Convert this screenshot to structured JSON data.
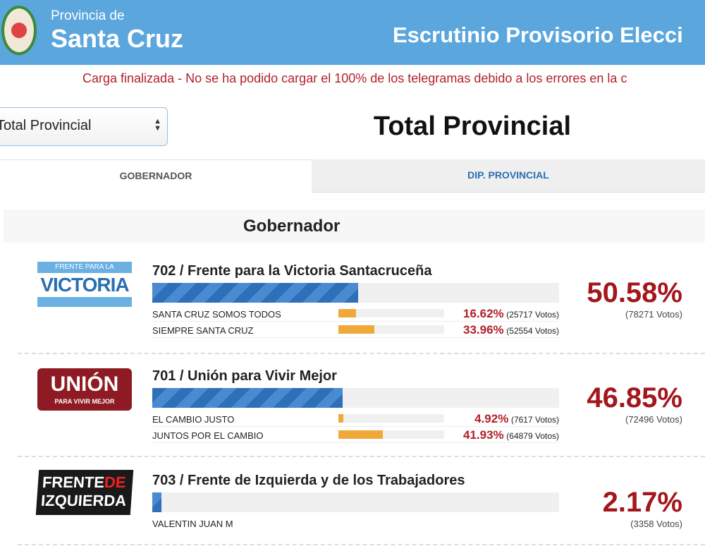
{
  "header": {
    "province_label": "Provincia de",
    "province_name": "Santa Cruz",
    "title": "Escrutinio Provisorio Elecci"
  },
  "warning": "Carga finalizada - No se ha podido cargar el 100% de los telegramas debido a los errores en la c",
  "select": {
    "value": "Total Provincial"
  },
  "page_title": "Total Provincial",
  "tabs": [
    {
      "label": "GOBERNADOR",
      "active": true
    },
    {
      "label": "DIP. PROVINCIAL",
      "active": false
    }
  ],
  "section": "Gobernador",
  "parties": [
    {
      "name": "702 / Frente para la Victoria Santacruceña",
      "logo": "FRENTE PARA LA VICTORIA",
      "pct": "50.58%",
      "pct_value": 50.58,
      "votes": "(78271 Votos)",
      "subs": [
        {
          "name": "SANTA CRUZ SOMOS TODOS",
          "pct": "16.62%",
          "pct_value": 16.62,
          "votes": "(25717 Votos)"
        },
        {
          "name": "SIEMPRE SANTA CRUZ",
          "pct": "33.96%",
          "pct_value": 33.96,
          "votes": "(52554 Votos)"
        }
      ]
    },
    {
      "name": "701 / Unión para Vivir Mejor",
      "logo": "UNIÓN PARA VIVIR MEJOR",
      "pct": "46.85%",
      "pct_value": 46.85,
      "votes": "(72496 Votos)",
      "subs": [
        {
          "name": "EL CAMBIO JUSTO",
          "pct": "4.92%",
          "pct_value": 4.92,
          "votes": "(7617 Votos)"
        },
        {
          "name": "JUNTOS POR EL CAMBIO",
          "pct": "41.93%",
          "pct_value": 41.93,
          "votes": "(64879 Votos)"
        }
      ]
    },
    {
      "name": "703 / Frente de Izquierda y de los Trabajadores",
      "logo": "FRENTE DE IZQUIERDA",
      "pct": "2.17%",
      "pct_value": 2.17,
      "votes": "(3358 Votos)",
      "subs": [
        {
          "name": "VALENTIN JUAN M"
        }
      ]
    }
  ]
}
